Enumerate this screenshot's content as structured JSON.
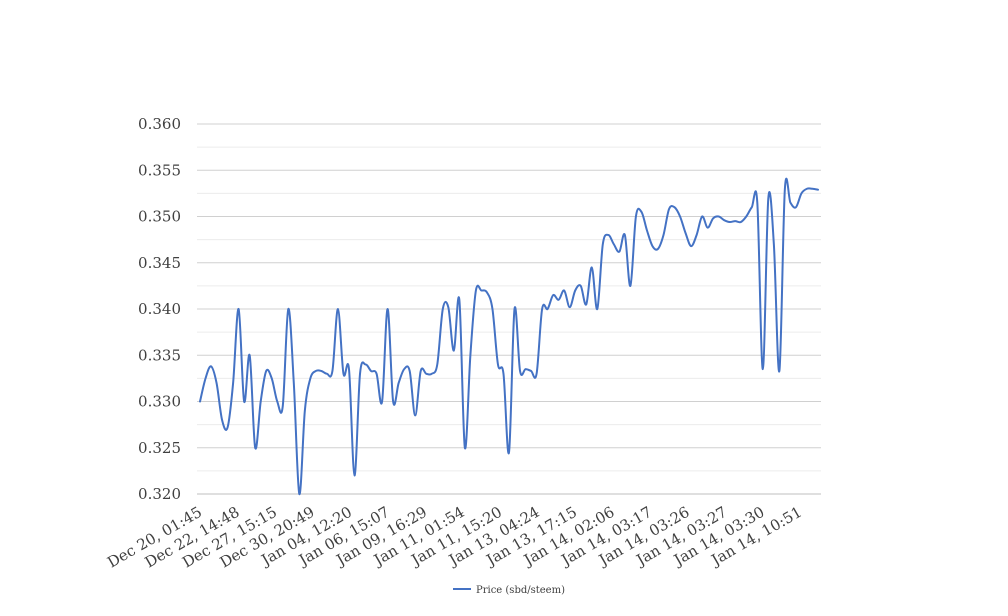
{
  "chart_data": {
    "type": "line",
    "title": "",
    "xlabel": "",
    "ylabel": "",
    "ylim": [
      0.32,
      0.36
    ],
    "yticks": [
      "0.320",
      "0.325",
      "0.330",
      "0.335",
      "0.340",
      "0.345",
      "0.350",
      "0.355",
      "0.360"
    ],
    "ytick_values": [
      0.32,
      0.325,
      0.33,
      0.335,
      0.34,
      0.345,
      0.35,
      0.355,
      0.36
    ],
    "xtick_labels": [
      "Dec 20, 01:45",
      "Dec 22, 14:48",
      "Dec 27, 15:15",
      "Dec 30, 20:49",
      "Jan 04, 12:20",
      "Jan 06, 15:07",
      "Jan 09, 16:29",
      "Jan 11, 01:54",
      "Jan 11, 15:20",
      "Jan 13, 04:24",
      "Jan 13, 17:15",
      "Jan 14, 02:06",
      "Jan 14, 03:17",
      "Jan 14, 03:26",
      "Jan 14, 03:27",
      "Jan 14, 03:30",
      "Jan 14, 10:51"
    ],
    "grid": true,
    "legend_position": "bottom",
    "series": [
      {
        "name": "Price (sbd/steem)",
        "color": "#4472c4",
        "values": [
          0.33,
          0.3325,
          0.3338,
          0.332,
          0.328,
          0.3272,
          0.332,
          0.34,
          0.33,
          0.335,
          0.325,
          0.33,
          0.3333,
          0.3325,
          0.33,
          0.3295,
          0.34,
          0.332,
          0.32,
          0.329,
          0.3325,
          0.3333,
          0.3333,
          0.333,
          0.3333,
          0.34,
          0.333,
          0.3335,
          0.322,
          0.333,
          0.334,
          0.3333,
          0.333,
          0.33,
          0.34,
          0.33,
          0.332,
          0.3335,
          0.3333,
          0.3285,
          0.3333,
          0.333,
          0.333,
          0.334,
          0.34,
          0.3402,
          0.3355,
          0.341,
          0.325,
          0.335,
          0.342,
          0.342,
          0.3418,
          0.34,
          0.334,
          0.333,
          0.3245,
          0.34,
          0.3333,
          0.3335,
          0.3333,
          0.333,
          0.34,
          0.34,
          0.3415,
          0.341,
          0.342,
          0.3402,
          0.342,
          0.3425,
          0.3405,
          0.3445,
          0.34,
          0.347,
          0.348,
          0.347,
          0.3462,
          0.348,
          0.3425,
          0.35,
          0.3505,
          0.3485,
          0.3468,
          0.3465,
          0.348,
          0.3508,
          0.351,
          0.35,
          0.3482,
          0.3468,
          0.348,
          0.35,
          0.3488,
          0.3498,
          0.35,
          0.3496,
          0.3494,
          0.3495,
          0.3494,
          0.35,
          0.351,
          0.3515,
          0.3335,
          0.352,
          0.347,
          0.3333,
          0.353,
          0.3515,
          0.351,
          0.3525,
          0.353,
          0.353,
          0.3529
        ]
      }
    ]
  }
}
